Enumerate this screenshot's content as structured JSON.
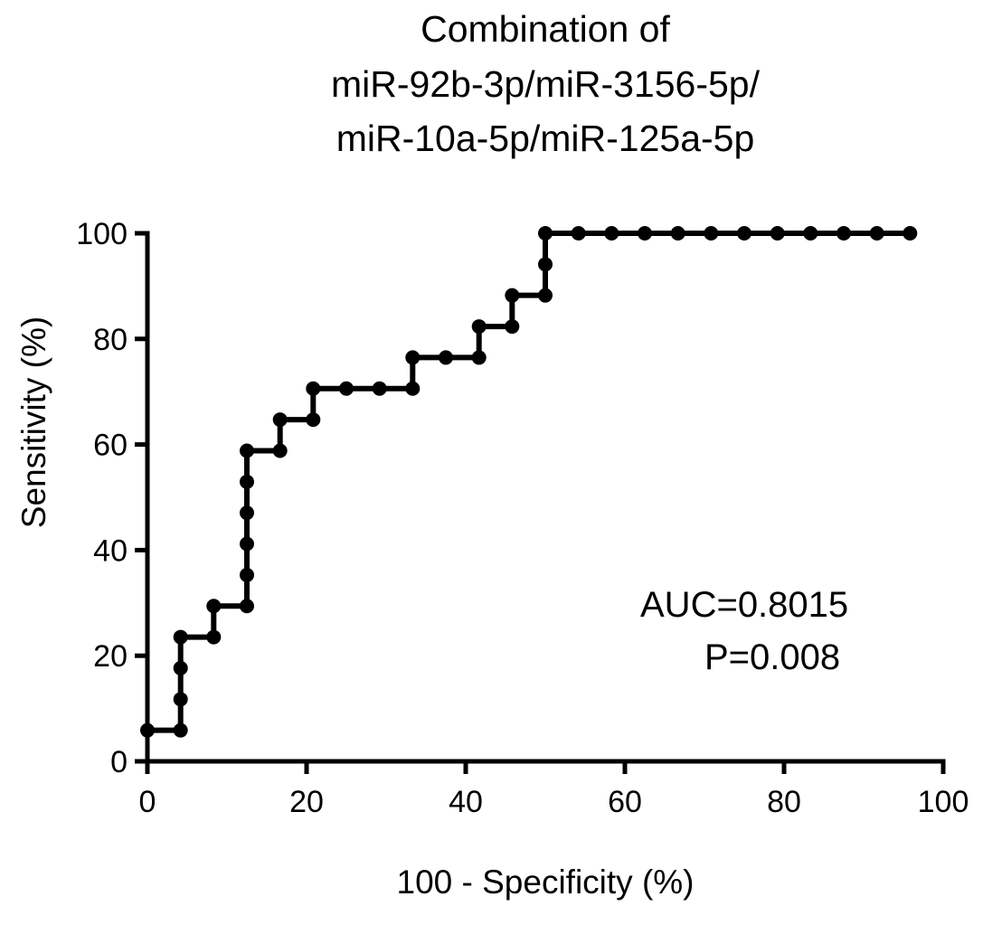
{
  "chart_data": {
    "type": "line",
    "title_lines": [
      "Combination of",
      "miR-92b-3p/miR-3156-5p/",
      "miR-10a-5p/miR-125a-5p"
    ],
    "xlabel": "100 - Specificity (%)",
    "ylabel": "Sensitivity (%)",
    "xlim": [
      0,
      100
    ],
    "ylim": [
      0,
      100
    ],
    "xticks": [
      "0",
      "20",
      "40",
      "60",
      "80",
      "100"
    ],
    "yticks": [
      "0",
      "20",
      "40",
      "60",
      "80",
      "100"
    ],
    "grid": false,
    "legend": "none",
    "line_color": "#000000",
    "annotations": [
      "AUC=0.8015",
      "P=0.008"
    ],
    "series": [
      {
        "x": [
          0,
          4.17,
          4.17,
          4.17,
          4.17,
          8.33,
          8.33,
          12.5,
          12.5,
          12.5,
          12.5,
          12.5,
          12.5,
          16.67,
          16.67,
          20.83,
          20.83,
          25,
          29.17,
          33.33,
          33.33,
          37.5,
          41.67,
          41.67,
          45.83,
          45.83,
          50,
          50,
          50,
          54.17,
          58.33,
          62.5,
          66.67,
          70.83,
          75,
          79.17,
          83.33,
          87.5,
          91.67,
          95.83
        ],
        "y": [
          5.88,
          5.88,
          11.76,
          17.65,
          23.53,
          23.53,
          29.41,
          29.41,
          35.29,
          41.18,
          47.06,
          52.94,
          58.82,
          58.82,
          64.71,
          64.71,
          70.59,
          70.59,
          70.59,
          70.59,
          76.47,
          76.47,
          76.47,
          82.35,
          82.35,
          88.24,
          88.24,
          94.12,
          100,
          100,
          100,
          100,
          100,
          100,
          100,
          100,
          100,
          100,
          100,
          100
        ]
      }
    ]
  }
}
